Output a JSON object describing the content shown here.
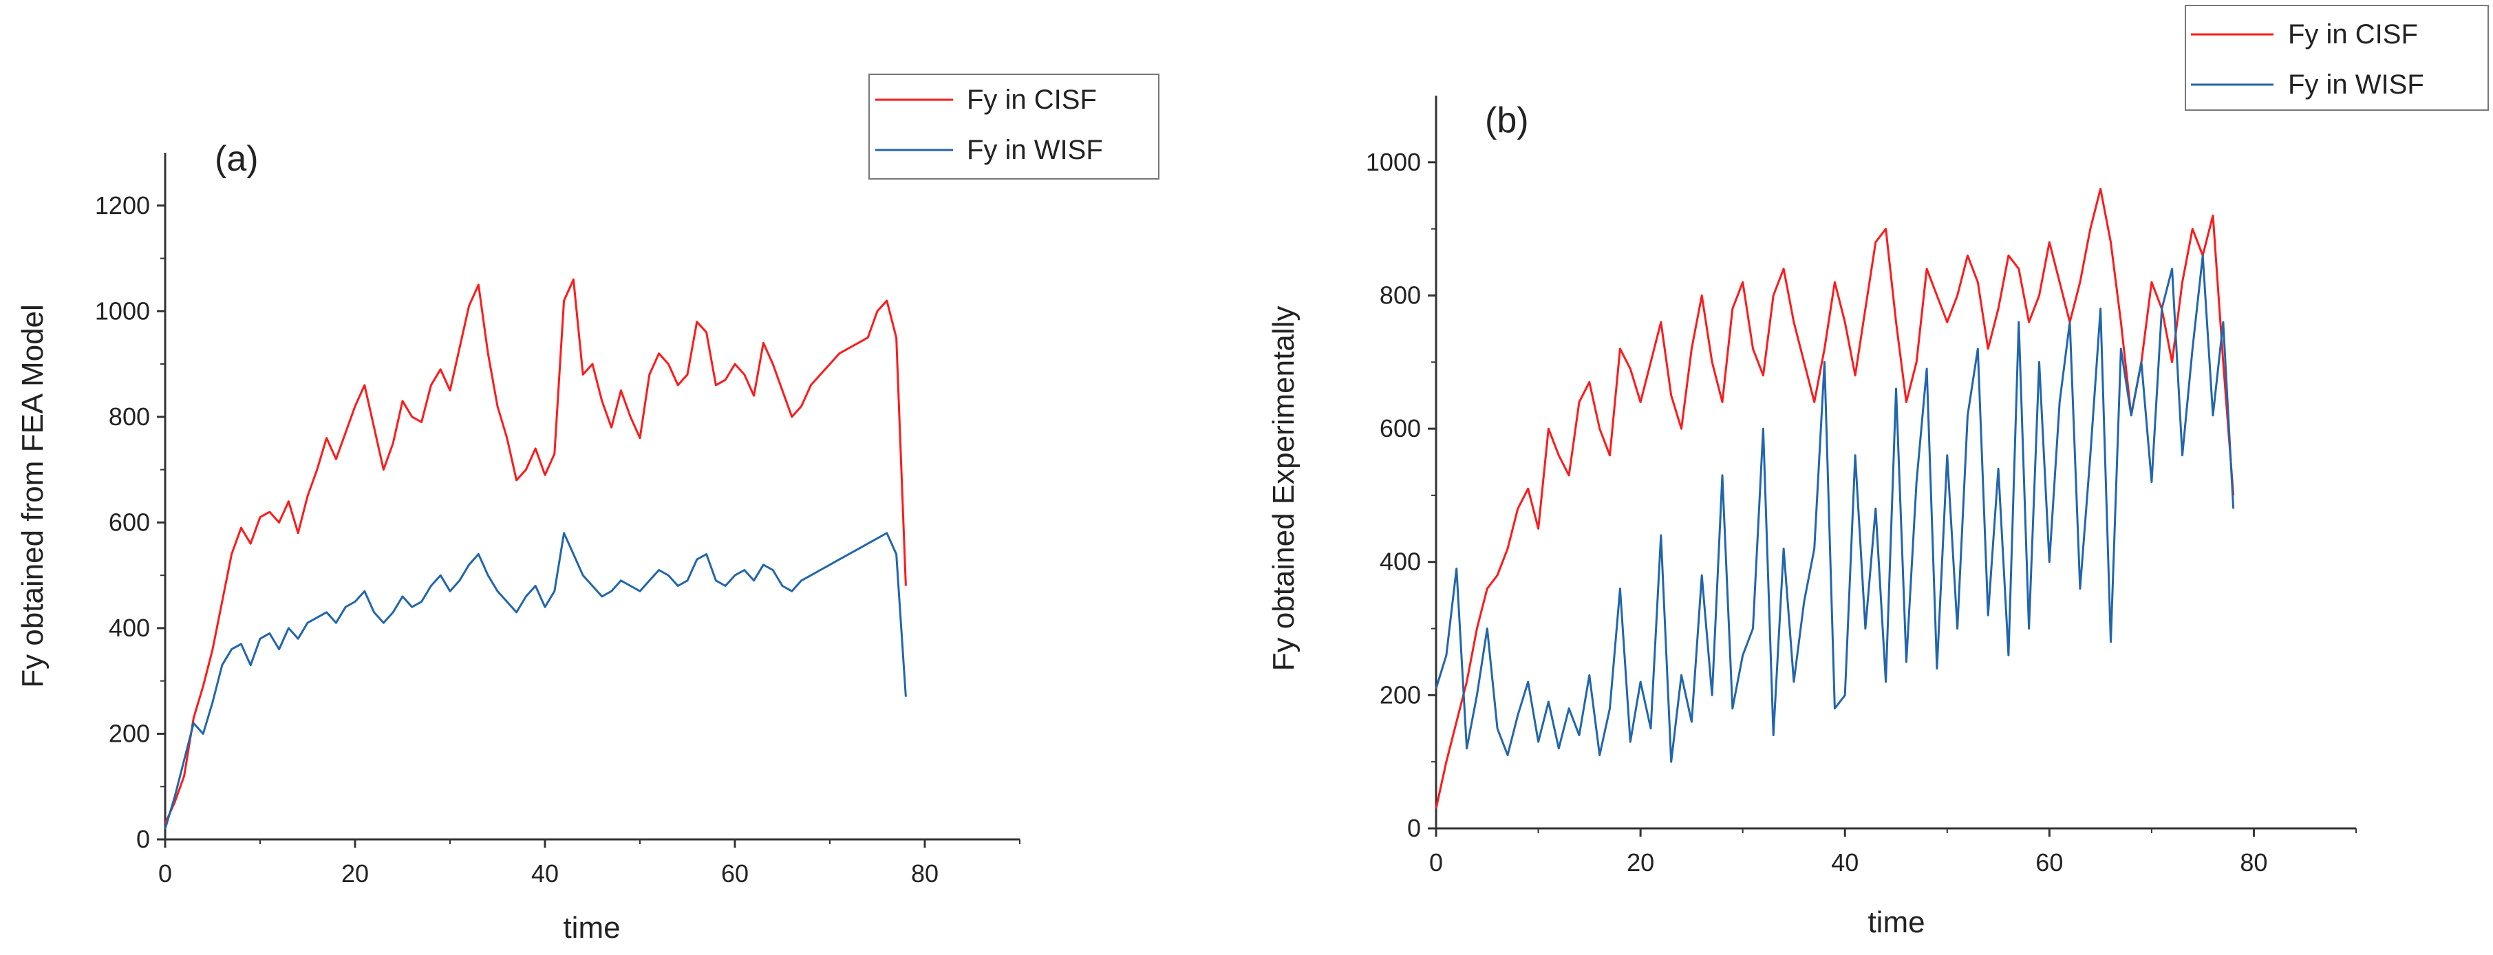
{
  "chart_data": [
    {
      "type": "line",
      "panel_label": "(a)",
      "title": "",
      "xlabel": "time",
      "ylabel": "Fy obtained from FEA Model",
      "xlim": [
        0,
        90
      ],
      "ylim": [
        0,
        1300
      ],
      "xticks": [
        0,
        20,
        40,
        60,
        80
      ],
      "yticks": [
        0,
        200,
        400,
        600,
        800,
        1000,
        1200
      ],
      "xtick_labels": [
        "0",
        "20",
        "40",
        "60",
        "80"
      ],
      "ytick_labels": [
        "0",
        "200",
        "400",
        "600",
        "800",
        "1000",
        "1200"
      ],
      "legend_position": "top-right",
      "series": [
        {
          "name": "Fy in CISF",
          "color": "#ff1a1a",
          "x": [
            0,
            1,
            2,
            3,
            4,
            5,
            6,
            7,
            8,
            9,
            10,
            11,
            12,
            13,
            14,
            15,
            16,
            17,
            18,
            19,
            20,
            21,
            22,
            23,
            24,
            25,
            26,
            27,
            28,
            29,
            30,
            31,
            32,
            33,
            34,
            35,
            36,
            37,
            38,
            39,
            40,
            41,
            42,
            43,
            44,
            45,
            46,
            47,
            48,
            49,
            50,
            51,
            52,
            53,
            54,
            55,
            56,
            57,
            58,
            59,
            60,
            61,
            62,
            63,
            64,
            65,
            66,
            67,
            68,
            69,
            70,
            71,
            72,
            73,
            74,
            75,
            76,
            77,
            78
          ],
          "y": [
            30,
            70,
            120,
            230,
            290,
            360,
            450,
            540,
            590,
            560,
            610,
            620,
            600,
            640,
            580,
            650,
            700,
            760,
            720,
            770,
            820,
            860,
            780,
            700,
            750,
            830,
            800,
            790,
            860,
            890,
            850,
            930,
            1010,
            1050,
            920,
            820,
            760,
            680,
            700,
            740,
            690,
            730,
            1020,
            1060,
            880,
            900,
            830,
            780,
            850,
            800,
            760,
            880,
            920,
            900,
            860,
            880,
            980,
            960,
            860,
            870,
            900,
            880,
            840,
            940,
            900,
            850,
            800,
            820,
            860,
            880,
            900,
            920,
            930,
            940,
            950,
            1000,
            1020,
            950,
            480
          ]
        },
        {
          "name": "Fy in WISF",
          "color": "#2166ac",
          "x": [
            0,
            1,
            2,
            3,
            4,
            5,
            6,
            7,
            8,
            9,
            10,
            11,
            12,
            13,
            14,
            15,
            16,
            17,
            18,
            19,
            20,
            21,
            22,
            23,
            24,
            25,
            26,
            27,
            28,
            29,
            30,
            31,
            32,
            33,
            34,
            35,
            36,
            37,
            38,
            39,
            40,
            41,
            42,
            43,
            44,
            45,
            46,
            47,
            48,
            49,
            50,
            51,
            52,
            53,
            54,
            55,
            56,
            57,
            58,
            59,
            60,
            61,
            62,
            63,
            64,
            65,
            66,
            67,
            68,
            69,
            70,
            71,
            72,
            73,
            74,
            75,
            76,
            77,
            78
          ],
          "y": [
            20,
            80,
            150,
            220,
            200,
            260,
            330,
            360,
            370,
            330,
            380,
            390,
            360,
            400,
            380,
            410,
            420,
            430,
            410,
            440,
            450,
            470,
            430,
            410,
            430,
            460,
            440,
            450,
            480,
            500,
            470,
            490,
            520,
            540,
            500,
            470,
            450,
            430,
            460,
            480,
            440,
            470,
            580,
            540,
            500,
            480,
            460,
            470,
            490,
            480,
            470,
            490,
            510,
            500,
            480,
            490,
            530,
            540,
            490,
            480,
            500,
            510,
            490,
            520,
            510,
            480,
            470,
            490,
            500,
            510,
            520,
            530,
            540,
            550,
            560,
            570,
            580,
            540,
            270
          ]
        }
      ]
    },
    {
      "type": "line",
      "panel_label": "(b)",
      "title": "",
      "xlabel": "time",
      "ylabel": "Fy obtained Experimentally",
      "xlim": [
        0,
        90
      ],
      "ylim": [
        0,
        1100
      ],
      "xticks": [
        0,
        20,
        40,
        60,
        80
      ],
      "yticks": [
        0,
        200,
        400,
        600,
        800,
        1000
      ],
      "xtick_labels": [
        "0",
        "20",
        "40",
        "60",
        "80"
      ],
      "ytick_labels": [
        "0",
        "200",
        "400",
        "600",
        "800",
        "1000"
      ],
      "legend_position": "top-right",
      "series": [
        {
          "name": "Fy in CISF",
          "color": "#ff1a1a",
          "x": [
            0,
            1,
            2,
            3,
            4,
            5,
            6,
            7,
            8,
            9,
            10,
            11,
            12,
            13,
            14,
            15,
            16,
            17,
            18,
            19,
            20,
            21,
            22,
            23,
            24,
            25,
            26,
            27,
            28,
            29,
            30,
            31,
            32,
            33,
            34,
            35,
            36,
            37,
            38,
            39,
            40,
            41,
            42,
            43,
            44,
            45,
            46,
            47,
            48,
            49,
            50,
            51,
            52,
            53,
            54,
            55,
            56,
            57,
            58,
            59,
            60,
            61,
            62,
            63,
            64,
            65,
            66,
            67,
            68,
            69,
            70,
            71,
            72,
            73,
            74,
            75,
            76,
            77,
            78
          ],
          "y": [
            30,
            100,
            160,
            220,
            300,
            360,
            380,
            420,
            480,
            510,
            450,
            600,
            560,
            530,
            640,
            670,
            600,
            560,
            720,
            690,
            640,
            700,
            760,
            650,
            600,
            720,
            800,
            700,
            640,
            780,
            820,
            720,
            680,
            800,
            840,
            760,
            700,
            640,
            720,
            820,
            760,
            680,
            780,
            880,
            900,
            760,
            640,
            700,
            840,
            800,
            760,
            800,
            860,
            820,
            720,
            780,
            860,
            840,
            760,
            800,
            880,
            820,
            760,
            820,
            900,
            960,
            880,
            760,
            620,
            700,
            820,
            780,
            700,
            820,
            900,
            860,
            920,
            700,
            500
          ]
        },
        {
          "name": "Fy in WISF",
          "color": "#2166ac",
          "x": [
            0,
            1,
            2,
            3,
            4,
            5,
            6,
            7,
            8,
            9,
            10,
            11,
            12,
            13,
            14,
            15,
            16,
            17,
            18,
            19,
            20,
            21,
            22,
            23,
            24,
            25,
            26,
            27,
            28,
            29,
            30,
            31,
            32,
            33,
            34,
            35,
            36,
            37,
            38,
            39,
            40,
            41,
            42,
            43,
            44,
            45,
            46,
            47,
            48,
            49,
            50,
            51,
            52,
            53,
            54,
            55,
            56,
            57,
            58,
            59,
            60,
            61,
            62,
            63,
            64,
            65,
            66,
            67,
            68,
            69,
            70,
            71,
            72,
            73,
            74,
            75,
            76,
            77,
            78
          ],
          "y": [
            210,
            260,
            390,
            120,
            200,
            300,
            150,
            110,
            170,
            220,
            130,
            190,
            120,
            180,
            140,
            230,
            110,
            180,
            360,
            130,
            220,
            150,
            440,
            100,
            230,
            160,
            380,
            200,
            530,
            180,
            260,
            300,
            600,
            140,
            420,
            220,
            340,
            420,
            700,
            180,
            200,
            560,
            300,
            480,
            220,
            660,
            250,
            520,
            690,
            240,
            560,
            300,
            620,
            720,
            320,
            540,
            260,
            760,
            300,
            700,
            400,
            640,
            760,
            360,
            560,
            780,
            280,
            720,
            620,
            700,
            520,
            780,
            840,
            560,
            720,
            860,
            620,
            760,
            480
          ]
        }
      ]
    }
  ]
}
